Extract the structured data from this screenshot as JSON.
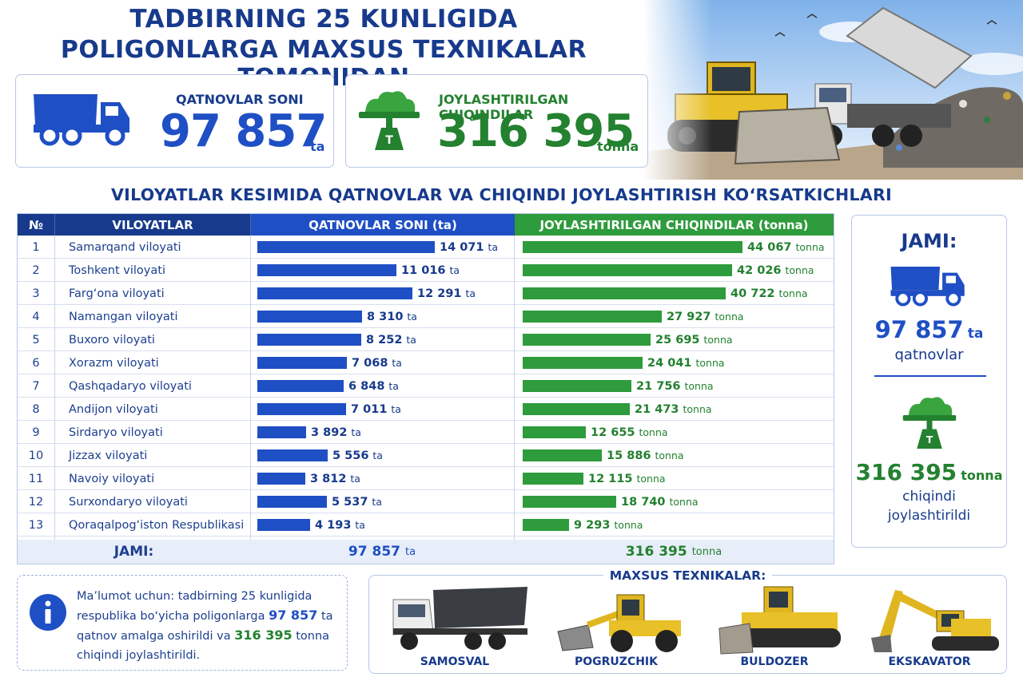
{
  "title": {
    "line1": "TADBIRNING 25 KUNLIGIDA",
    "line2": "POLIGONLARGA MAXSUS TEXNIKALAR TOMONIDAN"
  },
  "kpi": {
    "trips": {
      "label": "QATNOVLAR SONI",
      "value": "97 857",
      "unit": "ta",
      "icon": "dump-truck-icon"
    },
    "waste": {
      "label": "JOYLASHTIRILGAN CHIQINDILAR",
      "value": "316 395",
      "unit": "tonna",
      "icon": "waste-scale-icon"
    }
  },
  "subtitle": "VILOYATLAR KESIMIDA QATNOVLAR VA  CHIQINDI  JOYLASHTIRISH  KO‘RSATKICHLARI",
  "colors": {
    "navy": "#173a8c",
    "blue": "#1f4fc4",
    "green": "#2e9b3c",
    "dark_green": "#23812f"
  },
  "chart_data": {
    "type": "bar",
    "columns": [
      "№",
      "VILOYATLAR",
      "QATNOVLAR SONI (ta)",
      "JOYLASHTIRILGAN CHIQINDILAR (tonna)"
    ],
    "categories": [
      "Samarqand viloyati",
      "Toshkent viloyati",
      "Farg‘ona viloyati",
      "Namangan viloyati",
      "Buxoro viloyati",
      "Xorazm viloyati",
      "Qashqadaryo viloyati",
      "Andijon viloyati",
      "Sirdaryo viloyati",
      "Jizzax viloyati",
      "Navoiy viloyati",
      "Surxondaryo viloyati",
      "Qoraqalpog‘iston Respublikasi"
    ],
    "numbers": [
      "1",
      "2",
      "3",
      "4",
      "5",
      "6",
      "7",
      "8",
      "9",
      "10",
      "11",
      "12",
      "13"
    ],
    "series": [
      {
        "name": "QATNOVLAR SONI (ta)",
        "unit": "ta",
        "values": [
          14071,
          11016,
          12291,
          8310,
          8252,
          7068,
          6848,
          7011,
          3892,
          5556,
          3812,
          5537,
          4193
        ],
        "labels": [
          "14 071",
          "11 016",
          "12 291",
          "8 310",
          "8 252",
          "7 068",
          "6 848",
          "7 011",
          "3 892",
          "5 556",
          "3 812",
          "5 537",
          "4 193"
        ],
        "color": "#1f4fc4"
      },
      {
        "name": "JOYLASHTIRILGAN CHIQINDILAR (tonna)",
        "unit": "tonna",
        "values": [
          44067,
          42026,
          40722,
          27927,
          25695,
          24041,
          21756,
          21473,
          12655,
          15886,
          12115,
          18740,
          9293
        ],
        "labels": [
          "44 067",
          "42 026",
          "40 722",
          "27 927",
          "25 695",
          "24 041",
          "21 756",
          "21 473",
          "12 655",
          "15 886",
          "12 115",
          "18 740",
          "9 293"
        ],
        "color": "#2e9b3c"
      }
    ],
    "total": {
      "label": "JAMI:",
      "trips": "97 857",
      "trips_unit": "ta",
      "waste": "316 395",
      "waste_unit": "tonna"
    }
  },
  "summary": {
    "title": "JAMI:",
    "trips_value": "97 857",
    "trips_unit": "ta",
    "trips_text": "qatnovlar",
    "waste_value": "316 395",
    "waste_unit": "tonna",
    "waste_text_1": "chiqindi",
    "waste_text_2": "joylashtirildi"
  },
  "info": {
    "icon": "info-icon",
    "t1": "Ma’lumot uchun: tadbirning 25 kunligida",
    "t2": "respublika bo‘yicha poligonlarga",
    "v1": "97 857",
    "t3": "ta",
    "t4": "qatnov amalga oshirildi va",
    "v2": "316 395",
    "t5": "tonna",
    "t6": "chiqindi joylashtirildi."
  },
  "machines": {
    "title": "MAXSUS TEXNIKALAR:",
    "items": [
      {
        "name": "SAMOSVAL",
        "icon": "dump-truck-icon"
      },
      {
        "name": "POGRUZCHIK",
        "icon": "loader-icon"
      },
      {
        "name": "BULDOZER",
        "icon": "bulldozer-icon"
      },
      {
        "name": "EKSKAVATOR",
        "icon": "excavator-icon"
      }
    ]
  }
}
